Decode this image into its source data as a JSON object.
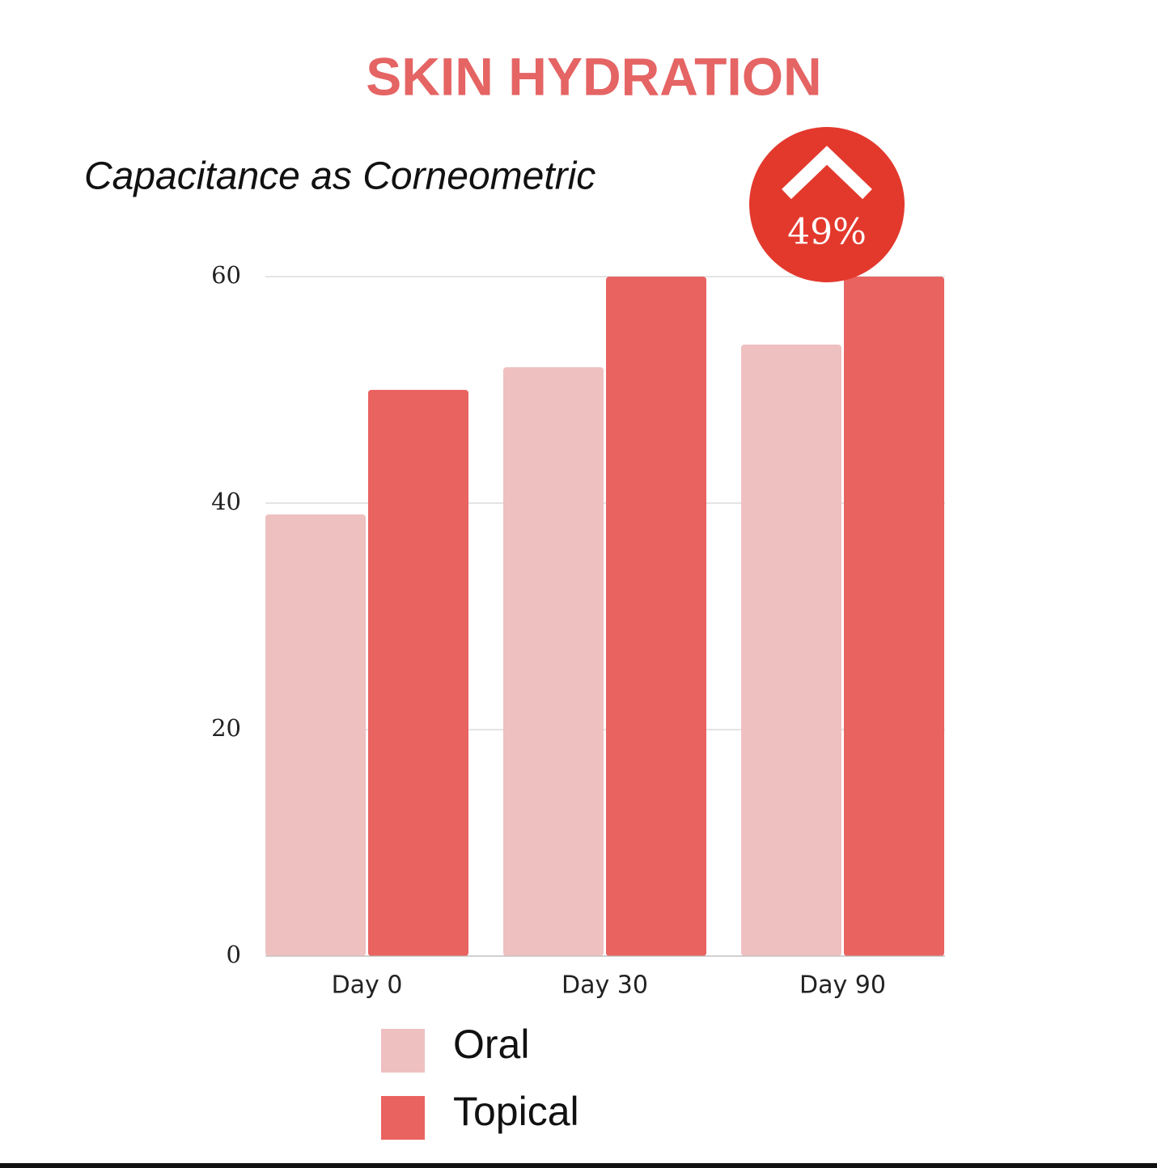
{
  "chart_data": {
    "type": "bar",
    "title": "SKIN HYDRATION",
    "subtitle": "Capacitance as Corneometric",
    "annotation": "49%",
    "categories": [
      "Day 0",
      "Day 30",
      "Day 90"
    ],
    "series": [
      {
        "name": "Oral",
        "color": "#efc0c0",
        "values": [
          39,
          52,
          54
        ]
      },
      {
        "name": "Topical",
        "color": "#e96361",
        "values": [
          50,
          60,
          60
        ]
      }
    ],
    "ylim": [
      0,
      60
    ],
    "yticks": [
      0,
      20,
      40,
      60
    ],
    "grid": true
  }
}
